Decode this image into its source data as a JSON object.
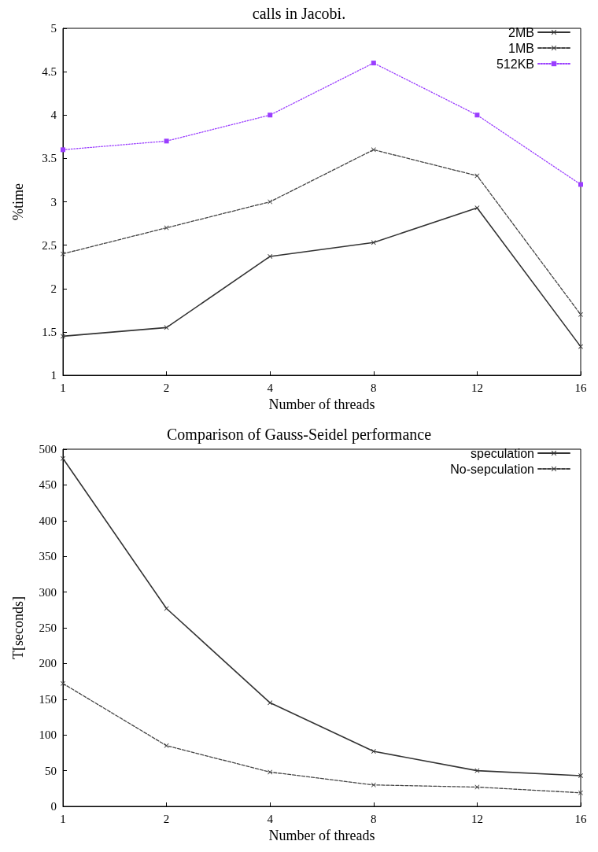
{
  "chart_data": [
    {
      "type": "line",
      "title": "calls in Jacobi.",
      "xlabel": "Number of threads",
      "ylabel": "%time",
      "categories": [
        "1",
        "2",
        "4",
        "8",
        "12",
        "16"
      ],
      "ylim": [
        1,
        5
      ],
      "yticks": [
        1,
        1.5,
        2,
        2.5,
        3,
        3.5,
        4,
        4.5,
        5
      ],
      "grid": false,
      "legend": "top right",
      "series": [
        {
          "name": "2MB",
          "color": "#333333",
          "marker": "cross",
          "line_style": "solid",
          "values": [
            1.45,
            1.55,
            2.37,
            2.53,
            2.93,
            1.33
          ]
        },
        {
          "name": "1MB",
          "color": "#444444",
          "marker": "cross",
          "line_style": "dashed",
          "values": [
            2.4,
            2.7,
            3.0,
            3.6,
            3.3,
            1.7
          ]
        },
        {
          "name": "512KB",
          "color": "#9a3dff",
          "marker": "square",
          "line_style": "dotted",
          "values": [
            3.6,
            3.7,
            4.0,
            4.6,
            4.0,
            3.2
          ]
        }
      ]
    },
    {
      "type": "line",
      "title": "Comparison of Gauss-Seidel performance",
      "xlabel": "Number of threads",
      "ylabel": "T[seconds]",
      "categories": [
        "1",
        "2",
        "4",
        "8",
        "12",
        "16"
      ],
      "ylim": [
        0,
        500
      ],
      "yticks": [
        0,
        50,
        100,
        150,
        200,
        250,
        300,
        350,
        400,
        450,
        500
      ],
      "grid": false,
      "legend": "top right",
      "series": [
        {
          "name": "speculation",
          "color": "#333333",
          "marker": "cross",
          "line_style": "solid",
          "values": [
            487,
            277,
            145,
            77,
            50,
            43
          ]
        },
        {
          "name": "No-sepculation",
          "color": "#444444",
          "marker": "cross",
          "line_style": "dashed",
          "values": [
            172,
            85,
            48,
            30,
            27,
            19
          ]
        }
      ]
    }
  ]
}
